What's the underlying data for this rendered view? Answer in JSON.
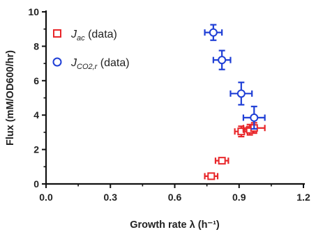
{
  "chart_data": {
    "type": "scatter",
    "xlabel": "Growth rate λ (h⁻¹)",
    "ylabel": "Flux (mM/OD600/hr)",
    "xlim": [
      0.0,
      1.2
    ],
    "ylim": [
      0,
      10
    ],
    "x_ticks": [
      "0.0",
      "0.3",
      "0.6",
      "0.9",
      "1.2"
    ],
    "y_ticks": [
      "0",
      "2",
      "4",
      "6",
      "8",
      "10"
    ],
    "legend": {
      "placement": "top-left"
    },
    "series": [
      {
        "name": "J_ac (data)",
        "legend_main": "J",
        "legend_sub": "ac",
        "legend_suffix": " (data)",
        "marker": "square",
        "color": "#e8262a",
        "points": [
          {
            "x": 0.77,
            "y": 0.45,
            "xerr": 0.03,
            "yerr": 0.12
          },
          {
            "x": 0.82,
            "y": 1.35,
            "xerr": 0.03,
            "yerr": 0.12
          },
          {
            "x": 0.91,
            "y": 3.05,
            "xerr": 0.03,
            "yerr": 0.3
          },
          {
            "x": 0.95,
            "y": 3.15,
            "xerr": 0.03,
            "yerr": 0.3
          },
          {
            "x": 0.97,
            "y": 3.25,
            "xerr": 0.05,
            "yerr": 0.3
          }
        ]
      },
      {
        "name": "J_CO2,r (data)",
        "legend_main": "J",
        "legend_sub": "CO2,r",
        "legend_suffix": " (data)",
        "marker": "circle",
        "color": "#1f3fd6",
        "points": [
          {
            "x": 0.78,
            "y": 8.8,
            "xerr": 0.04,
            "yerr": 0.45
          },
          {
            "x": 0.82,
            "y": 7.2,
            "xerr": 0.04,
            "yerr": 0.55
          },
          {
            "x": 0.91,
            "y": 5.25,
            "xerr": 0.05,
            "yerr": 0.65
          },
          {
            "x": 0.97,
            "y": 3.85,
            "xerr": 0.05,
            "yerr": 0.65
          }
        ]
      }
    ]
  }
}
